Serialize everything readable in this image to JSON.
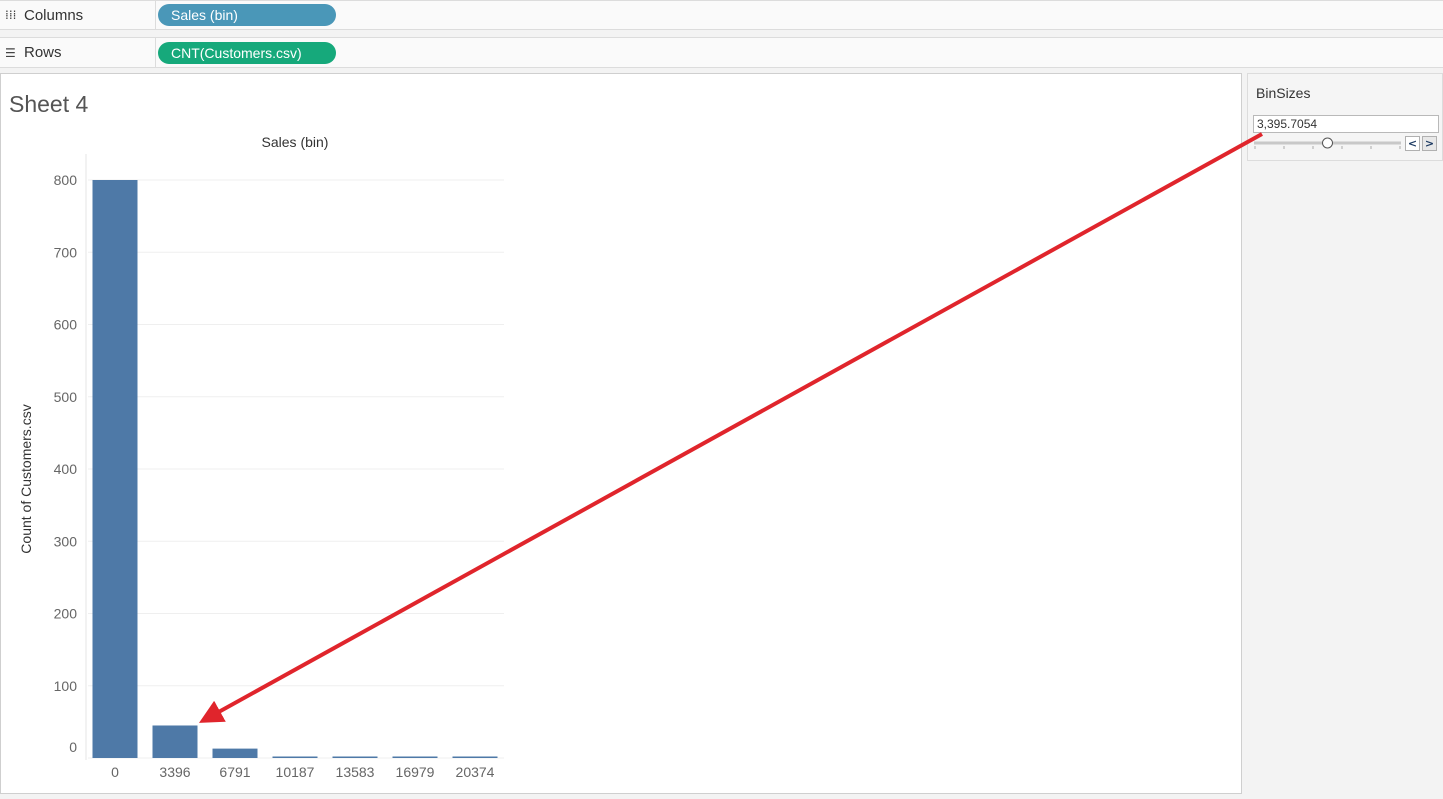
{
  "shelves": {
    "columns": {
      "label": "Columns",
      "icon": "columns-icon",
      "pill": "Sales (bin)",
      "pill_color": "#4a97b8"
    },
    "rows": {
      "label": "Rows",
      "icon": "rows-icon",
      "pill": "CNT(Customers.csv)",
      "pill_color": "#16a97b"
    }
  },
  "sheet": {
    "title": "Sheet 4"
  },
  "parameter": {
    "title": "BinSizes",
    "value": "3,395.7054",
    "slider_fraction": 0.5,
    "prev_label": "<",
    "next_label": ">"
  },
  "chart_data": {
    "type": "bar",
    "title": "Sales (bin)",
    "ylabel": "Count of Customers.csv",
    "xlabel": "",
    "categories": [
      "0",
      "3396",
      "6791",
      "10187",
      "13583",
      "16979",
      "20374"
    ],
    "values": [
      800,
      45,
      13,
      1,
      1,
      1,
      2
    ],
    "ylim": [
      0,
      800
    ],
    "yticks": [
      0,
      100,
      200,
      300,
      400,
      500,
      600,
      700,
      800
    ],
    "bar_color": "#4e79a7",
    "grid": true
  },
  "annotation": {
    "color": "#e0252c"
  }
}
